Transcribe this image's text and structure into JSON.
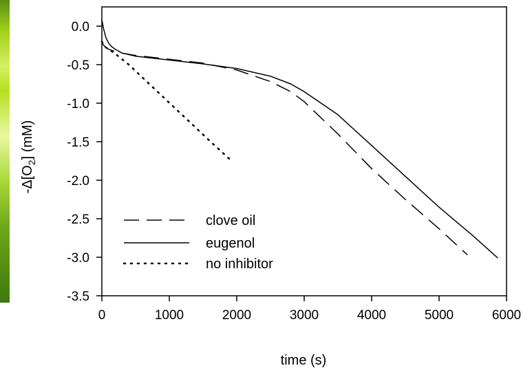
{
  "chart_data": {
    "type": "line",
    "title": "",
    "xlabel": "time (s)",
    "ylabel_main": "-Δ[O",
    "ylabel_sub": "2",
    "ylabel_end": "] (mM)",
    "xlim": [
      0,
      6000
    ],
    "ylim": [
      -3.5,
      0.25
    ],
    "xticks": [
      0,
      1000,
      2000,
      3000,
      4000,
      5000,
      6000
    ],
    "xtick_labels": [
      "0",
      "1000",
      "2000",
      "3000",
      "4000",
      "5000",
      "6000"
    ],
    "yticks": [
      0.0,
      -0.5,
      -1.0,
      -1.5,
      -2.0,
      -2.5,
      -3.0,
      -3.5
    ],
    "ytick_labels": [
      "0.0",
      "-0.5",
      "-1.0",
      "-1.5",
      "-2.0",
      "-2.5",
      "-3.0",
      "-3.5"
    ],
    "grid": false,
    "legend_placement": "bottom-left",
    "series": [
      {
        "name": "clove oil",
        "style": "dashed",
        "x": [
          0,
          50,
          100,
          200,
          300,
          500,
          1000,
          1500,
          2000,
          2500,
          2800,
          3000,
          3500,
          4000,
          4500,
          5000,
          5420
        ],
        "y": [
          -0.22,
          -0.27,
          -0.3,
          -0.33,
          -0.35,
          -0.38,
          -0.43,
          -0.48,
          -0.57,
          -0.72,
          -0.85,
          -0.98,
          -1.4,
          -1.85,
          -2.25,
          -2.63,
          -2.97
        ]
      },
      {
        "name": "eugenol",
        "style": "solid",
        "x": [
          0,
          30,
          60,
          100,
          150,
          200,
          300,
          500,
          1000,
          1500,
          2000,
          2500,
          2800,
          3000,
          3500,
          4000,
          4500,
          5000,
          5500,
          5870
        ],
        "y": [
          0.08,
          -0.05,
          -0.15,
          -0.22,
          -0.27,
          -0.3,
          -0.35,
          -0.39,
          -0.44,
          -0.49,
          -0.55,
          -0.65,
          -0.75,
          -0.85,
          -1.15,
          -1.55,
          -1.95,
          -2.35,
          -2.72,
          -3.01
        ]
      },
      {
        "name": "no inhibitor",
        "style": "dotted",
        "x": [
          0,
          50,
          100,
          200,
          400,
          800,
          1200,
          1600,
          1900
        ],
        "y": [
          -0.2,
          -0.27,
          -0.3,
          -0.36,
          -0.5,
          -0.83,
          -1.16,
          -1.49,
          -1.73
        ]
      }
    ]
  }
}
